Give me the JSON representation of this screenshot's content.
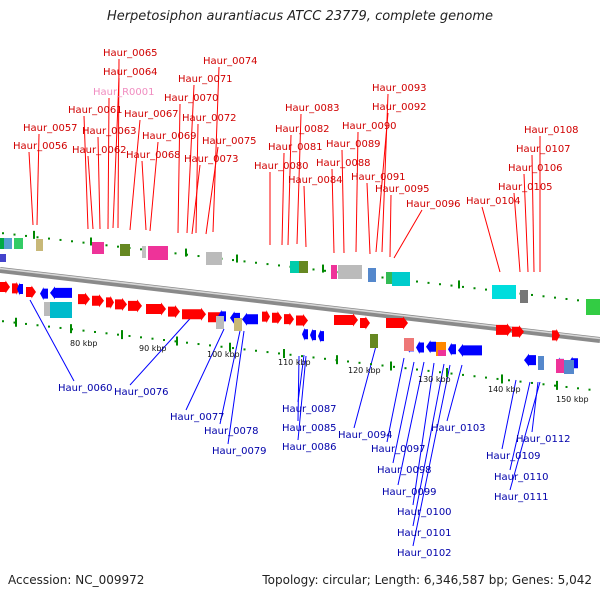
{
  "title": "Herpetosiphon aurantiacus ATCC 23779, complete genome",
  "footer": {
    "accession": "Accession: NC_009972",
    "summary": "Topology: circular; Length: 6,346,587 bp; Genes: 5,042"
  },
  "colors": {
    "forward_gene": "#ff0000",
    "reverse_gene": "#0000ff",
    "forward_label": "#d00000",
    "reverse_label": "#0000aa",
    "rna_label": "#f08cc0",
    "backbone": "#909090",
    "tick": "#008800"
  },
  "axis_labels": [
    "80 kbp",
    "90 kbp",
    "100 kbp",
    "110 kbp",
    "120 kbp",
    "130 kbp",
    "140 kbp",
    "150 kbp"
  ],
  "forward_labels": [
    {
      "text": "Haur_0057",
      "kind": "gene"
    },
    {
      "text": "Haur_0056",
      "kind": "gene"
    },
    {
      "text": "Haur_0065",
      "kind": "gene"
    },
    {
      "text": "Haur_0064",
      "kind": "gene"
    },
    {
      "text": "Haur_R0001",
      "kind": "rna"
    },
    {
      "text": "Haur_0061",
      "kind": "gene"
    },
    {
      "text": "Haur_0063",
      "kind": "gene"
    },
    {
      "text": "Haur_0062",
      "kind": "gene"
    },
    {
      "text": "Haur_0067",
      "kind": "gene"
    },
    {
      "text": "Haur_0068",
      "kind": "gene"
    },
    {
      "text": "Haur_0069",
      "kind": "gene"
    },
    {
      "text": "Haur_0074",
      "kind": "gene"
    },
    {
      "text": "Haur_0071",
      "kind": "gene"
    },
    {
      "text": "Haur_0070",
      "kind": "gene"
    },
    {
      "text": "Haur_0072",
      "kind": "gene"
    },
    {
      "text": "Haur_0075",
      "kind": "gene"
    },
    {
      "text": "Haur_0073",
      "kind": "gene"
    },
    {
      "text": "Haur_0083",
      "kind": "gene"
    },
    {
      "text": "Haur_0082",
      "kind": "gene"
    },
    {
      "text": "Haur_0081",
      "kind": "gene"
    },
    {
      "text": "Haur_0080",
      "kind": "gene"
    },
    {
      "text": "Haur_0084",
      "kind": "gene"
    },
    {
      "text": "Haur_0093",
      "kind": "gene"
    },
    {
      "text": "Haur_0092",
      "kind": "gene"
    },
    {
      "text": "Haur_0090",
      "kind": "gene"
    },
    {
      "text": "Haur_0089",
      "kind": "gene"
    },
    {
      "text": "Haur_0088",
      "kind": "gene"
    },
    {
      "text": "Haur_0091",
      "kind": "gene"
    },
    {
      "text": "Haur_0095",
      "kind": "gene"
    },
    {
      "text": "Haur_0096",
      "kind": "gene"
    },
    {
      "text": "Haur_0108",
      "kind": "gene"
    },
    {
      "text": "Haur_0107",
      "kind": "gene"
    },
    {
      "text": "Haur_0106",
      "kind": "gene"
    },
    {
      "text": "Haur_0105",
      "kind": "gene"
    },
    {
      "text": "Haur_0104",
      "kind": "gene"
    }
  ],
  "reverse_labels": [
    {
      "text": "Haur_0060"
    },
    {
      "text": "Haur_0076"
    },
    {
      "text": "Haur_0077"
    },
    {
      "text": "Haur_0078"
    },
    {
      "text": "Haur_0079"
    },
    {
      "text": "Haur_0087"
    },
    {
      "text": "Haur_0085"
    },
    {
      "text": "Haur_0086"
    },
    {
      "text": "Haur_0094"
    },
    {
      "text": "Haur_0097"
    },
    {
      "text": "Haur_0098"
    },
    {
      "text": "Haur_0099"
    },
    {
      "text": "Haur_0100"
    },
    {
      "text": "Haur_0101"
    },
    {
      "text": "Haur_0102"
    },
    {
      "text": "Haur_0103"
    },
    {
      "text": "Haur_0112"
    },
    {
      "text": "Haur_0109"
    },
    {
      "text": "Haur_0110"
    },
    {
      "text": "Haur_0111"
    }
  ]
}
